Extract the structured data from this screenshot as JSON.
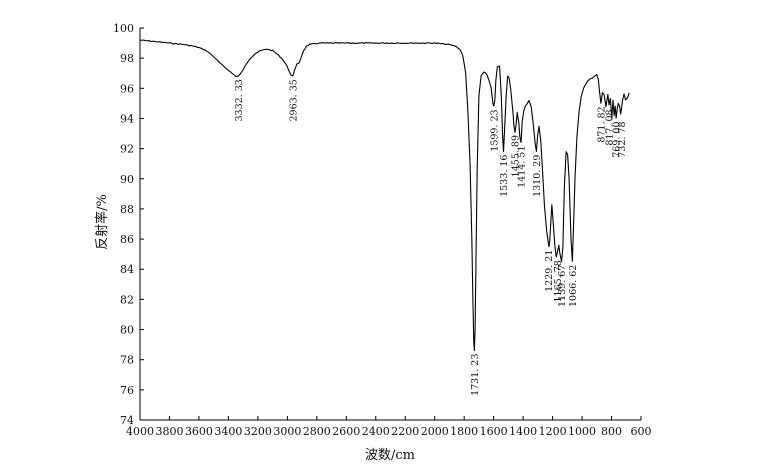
{
  "chart_data": {
    "type": "line",
    "xlabel": "波数/cm",
    "ylabel": "反射率/%",
    "xlim": [
      4000,
      600
    ],
    "ylim": [
      74,
      100
    ],
    "x_ticks": [
      "4000",
      "3800",
      "3600",
      "3400",
      "3200",
      "3000",
      "2800",
      "2600",
      "2400",
      "2200",
      "2000",
      "1800",
      "1600",
      "1400",
      "1200",
      "1000",
      "800",
      "600"
    ],
    "y_ticks": [
      "74",
      "76",
      "78",
      "80",
      "82",
      "84",
      "86",
      "88",
      "90",
      "92",
      "94",
      "96",
      "98",
      "100"
    ],
    "grid": false,
    "series": [
      {
        "x": [
          4000,
          3900,
          3800,
          3700,
          3640,
          3600,
          3550,
          3500,
          3450,
          3400,
          3370,
          3350,
          3332,
          3315,
          3290,
          3260,
          3220,
          3180,
          3140,
          3100,
          3060,
          3030,
          3010,
          2990,
          2975,
          2963,
          2950,
          2935,
          2920,
          2905,
          2890,
          2870,
          2850,
          2820,
          2780,
          2700,
          2600,
          2400,
          2200,
          2000,
          1900,
          1860,
          1830,
          1810,
          1790,
          1775,
          1760,
          1748,
          1740,
          1735,
          1731,
          1726,
          1720,
          1712,
          1700,
          1685,
          1665,
          1645,
          1630,
          1617,
          1605,
          1599,
          1592,
          1585,
          1575,
          1560,
          1548,
          1540,
          1533,
          1526,
          1515,
          1505,
          1495,
          1485,
          1470,
          1462,
          1455,
          1448,
          1440,
          1430,
          1422,
          1414,
          1406,
          1395,
          1385,
          1372,
          1360,
          1345,
          1330,
          1318,
          1310,
          1302,
          1292,
          1280,
          1268,
          1255,
          1240,
          1225,
          1220,
          1214,
          1205,
          1195,
          1185,
          1175,
          1166,
          1158,
          1150,
          1139,
          1130,
          1120,
          1108,
          1098,
          1088,
          1075,
          1066,
          1058,
          1048,
          1035,
          1020,
          1005,
          990,
          975,
          960,
          945,
          930,
          915,
          900,
          890,
          882,
          872,
          862,
          850,
          838,
          825,
          817,
          808,
          798,
          790,
          782,
          775,
          769,
          762,
          755,
          745,
          738,
          732,
          725,
          715,
          705,
          690,
          680
        ],
        "y": [
          99.2,
          99.1,
          99.0,
          98.9,
          98.8,
          98.7,
          98.5,
          98.1,
          97.6,
          97.2,
          96.95,
          96.8,
          96.8,
          97.0,
          97.4,
          97.9,
          98.3,
          98.5,
          98.6,
          98.5,
          98.2,
          97.9,
          97.6,
          97.2,
          96.9,
          96.8,
          97.2,
          97.6,
          97.7,
          98.1,
          98.5,
          98.8,
          98.9,
          98.95,
          99.0,
          99.0,
          99.0,
          99.0,
          99.0,
          99.0,
          98.9,
          98.8,
          98.6,
          98.2,
          97.0,
          94.5,
          91.0,
          86.0,
          81.5,
          79.2,
          78.6,
          80.0,
          84.5,
          90.5,
          95.5,
          96.8,
          97.1,
          96.9,
          96.5,
          96.0,
          95.0,
          94.8,
          95.2,
          96.5,
          97.4,
          97.5,
          95.5,
          93.0,
          91.8,
          93.2,
          95.5,
          96.8,
          96.7,
          96.0,
          94.5,
          93.5,
          93.1,
          93.6,
          94.4,
          93.8,
          92.8,
          92.4,
          93.8,
          94.5,
          94.8,
          95.0,
          95.2,
          94.8,
          93.5,
          92.3,
          91.8,
          92.8,
          93.5,
          92.5,
          90.5,
          88.2,
          86.5,
          85.5,
          85.8,
          86.8,
          88.3,
          87.0,
          85.6,
          84.8,
          85.2,
          85.6,
          85.0,
          84.5,
          85.5,
          89.5,
          91.8,
          91.6,
          90.0,
          86.0,
          84.5,
          86.8,
          90.0,
          92.8,
          94.5,
          95.5,
          96.0,
          96.3,
          96.5,
          96.6,
          96.7,
          96.8,
          96.9,
          96.6,
          95.8,
          95.0,
          95.7,
          95.6,
          94.8,
          95.6,
          94.9,
          95.3,
          94.0,
          95.2,
          94.2,
          94.8,
          94.0,
          94.6,
          95.0,
          94.8,
          94.3,
          94.7,
          95.2,
          95.6,
          95.2,
          95.4,
          95.7
        ]
      }
    ],
    "annotations": [
      {
        "label": "3332. 33",
        "x": 3332,
        "y": 96.8
      },
      {
        "label": "2963. 35",
        "x": 2963,
        "y": 96.8
      },
      {
        "label": "1731. 23",
        "x": 1731,
        "y": 78.6
      },
      {
        "label": "1599. 23",
        "x": 1599,
        "y": 94.8
      },
      {
        "label": "1533. 16",
        "x": 1533,
        "y": 91.8
      },
      {
        "label": "1455. 89",
        "x": 1455,
        "y": 93.1
      },
      {
        "label": "1414. 51",
        "x": 1414,
        "y": 92.4
      },
      {
        "label": "1310. 29",
        "x": 1310,
        "y": 91.8
      },
      {
        "label": "1229. 21",
        "x": 1229,
        "y": 85.5
      },
      {
        "label": "1165. 78",
        "x": 1166,
        "y": 84.8
      },
      {
        "label": "1139. 67",
        "x": 1139,
        "y": 84.5
      },
      {
        "label": "1066. 62",
        "x": 1066,
        "y": 84.5
      },
      {
        "label": "871. 82",
        "x": 872,
        "y": 95.0
      },
      {
        "label": "817. 08",
        "x": 817,
        "y": 94.8
      },
      {
        "label": "769. 00",
        "x": 769,
        "y": 94.0
      },
      {
        "label": "732. 78",
        "x": 732,
        "y": 94.0
      }
    ],
    "colors": {
      "line": "#000000",
      "axis": "#000000"
    }
  }
}
